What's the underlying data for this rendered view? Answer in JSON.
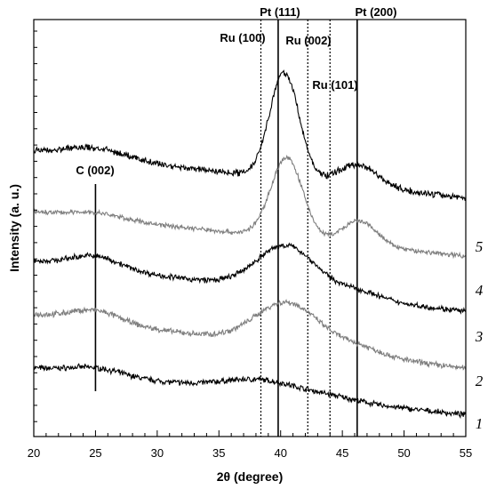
{
  "chart_data": {
    "type": "line",
    "title": "",
    "xlabel": "2θ (degree)",
    "ylabel": "Intensity (a. u.)",
    "xlim": [
      20,
      55
    ],
    "xticks": [
      "20",
      "25",
      "30",
      "35",
      "40",
      "45",
      "50",
      "55"
    ],
    "grid": false,
    "legend": "none",
    "y_units": "arbitrary (stacked, offset traces)",
    "reference_lines": [
      {
        "label": "C (002)",
        "x": 25.0,
        "style": "solid"
      },
      {
        "label": "Ru (100)",
        "x": 38.4,
        "style": "dotted"
      },
      {
        "label": "Pt (111)",
        "x": 39.8,
        "style": "solid"
      },
      {
        "label": "Ru (002)",
        "x": 42.2,
        "style": "dotted"
      },
      {
        "label": "Ru (101)",
        "x": 44.0,
        "style": "dotted"
      },
      {
        "label": "Pt (200)",
        "x": 46.2,
        "style": "solid"
      }
    ],
    "series": [
      {
        "name": "1",
        "color": "#000000",
        "baseline": 0.68,
        "end": 0.04,
        "peaks": [
          [
            25.0,
            0.1,
            2.2
          ],
          [
            38.6,
            0.18,
            3.2
          ],
          [
            44.5,
            0.04,
            2.0
          ]
        ],
        "noise": 0.03
      },
      {
        "name": "2",
        "color": "#7f7f7f",
        "baseline": 1.42,
        "end": 0.68,
        "peaks": [
          [
            25.0,
            0.16,
            2.0
          ],
          [
            40.6,
            0.6,
            2.6
          ],
          [
            46.5,
            0.1,
            1.8
          ]
        ],
        "noise": 0.03
      },
      {
        "name": "3",
        "color": "#000000",
        "baseline": 2.15,
        "end": 1.46,
        "peaks": [
          [
            25.0,
            0.17,
            2.0
          ],
          [
            40.5,
            0.62,
            2.4
          ],
          [
            46.4,
            0.1,
            1.8
          ]
        ],
        "noise": 0.03
      },
      {
        "name": "4",
        "color": "#7f7f7f",
        "baseline": 2.82,
        "end": 2.22,
        "peaks": [
          [
            25.0,
            0.08,
            2.2
          ],
          [
            40.5,
            1.1,
            1.3
          ],
          [
            46.4,
            0.33,
            1.4
          ]
        ],
        "noise": 0.025
      },
      {
        "name": "5",
        "color": "#000000",
        "baseline": 3.65,
        "end": 3.02,
        "peaks": [
          [
            25.0,
            0.14,
            2.5
          ],
          [
            40.3,
            1.45,
            1.2
          ],
          [
            46.3,
            0.3,
            1.6
          ]
        ],
        "noise": 0.035
      }
    ]
  }
}
